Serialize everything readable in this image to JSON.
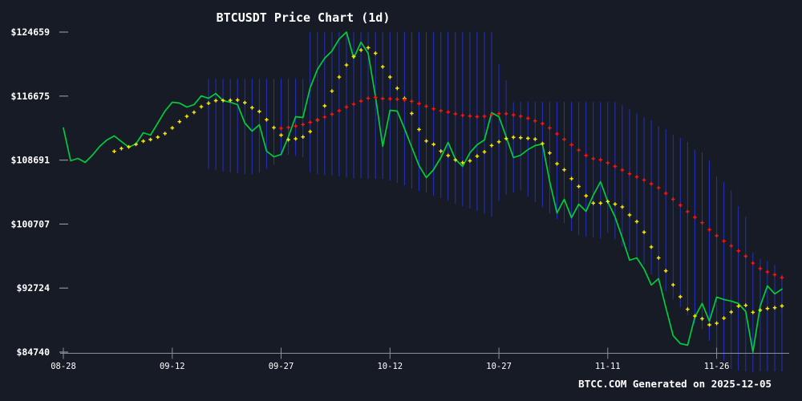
{
  "title": "BTCUSDT Price Chart (1d)",
  "watermark": "BTCC.COM Generated on 2025-12-05",
  "colors": {
    "background": "#171b26",
    "price_line": "#00cd3c",
    "ma_short": "#ffec00",
    "ma_long": "#ff1414",
    "range_lines": "#2430bd",
    "axis": "#8a9099",
    "text": "#ffffff"
  },
  "chart_data": {
    "type": "line",
    "title": "BTCUSDT Price Chart (1d)",
    "symbol": "BTCUSDT",
    "interval": "1d",
    "grid": false,
    "legend": "none",
    "x_start_date": "08-28",
    "x_end_date": "12-05",
    "x_tick_labels": [
      "08-28",
      "09-12",
      "09-27",
      "10-12",
      "10-27",
      "11-11",
      "11-26"
    ],
    "x_tick_days": [
      0,
      15,
      30,
      45,
      60,
      75,
      90
    ],
    "y_tick_labels": [
      "$124659",
      "$116675",
      "$108691",
      "$100707",
      "$92724",
      "$84740"
    ],
    "y_tick_values": [
      124659,
      116675,
      108691,
      100707,
      92724,
      84740
    ],
    "ylim": [
      84740,
      124659
    ],
    "series": [
      {
        "name": "close",
        "style": "solid-line",
        "color": "#00cd3c",
        "values": [
          112700,
          108600,
          108900,
          108400,
          109300,
          110400,
          111200,
          111700,
          111000,
          110300,
          110700,
          112100,
          111800,
          113300,
          114800,
          115900,
          115800,
          115300,
          115600,
          116700,
          116400,
          117000,
          116100,
          115900,
          115600,
          113300,
          112300,
          113100,
          109800,
          109100,
          109400,
          111600,
          114100,
          114000,
          117700,
          120000,
          121400,
          122300,
          123800,
          124659,
          121400,
          123400,
          122000,
          116600,
          110400,
          114900,
          114800,
          112600,
          110300,
          108000,
          106500,
          107500,
          109000,
          110900,
          108800,
          107900,
          109600,
          110600,
          111200,
          114600,
          114100,
          111600,
          109000,
          109300,
          110000,
          110500,
          110700,
          106000,
          102100,
          103800,
          101500,
          103200,
          102300,
          104300,
          106000,
          103500,
          101600,
          99000,
          96200,
          96500,
          95100,
          93100,
          93900,
          90300,
          86800,
          85800,
          85600,
          89100,
          90800,
          88600,
          91600,
          91300,
          91100,
          90800,
          89800,
          84740,
          90500,
          93000,
          92000,
          92600
        ]
      },
      {
        "name": "ma7",
        "style": "plus-dots",
        "derived_from": "close",
        "window": 7,
        "color": "#ffec00"
      },
      {
        "name": "ma30",
        "style": "plus-dots",
        "derived_from": "close",
        "window": 30,
        "color": "#ff1414"
      }
    ],
    "range_lines": {
      "comment": "vertical blue background lines, one per day",
      "start_day": 20,
      "color": "#2430bd",
      "top": [
        118840,
        118840,
        118840,
        118840,
        118840,
        118840,
        118840,
        118840,
        118840,
        118840,
        118840,
        118840,
        118840,
        118840,
        124659,
        124659,
        124659,
        124659,
        124659,
        124659,
        124659,
        124659,
        124659,
        124659,
        124659,
        124659,
        124659,
        124659,
        124659,
        124659,
        124659,
        124659,
        124659,
        124659,
        124659,
        124659,
        124659,
        124659,
        124659,
        124659,
        120640,
        118640,
        115940,
        115940,
        115940,
        115940,
        115940,
        115940,
        115940,
        115940,
        115940,
        115940,
        115940,
        115940,
        115940,
        115940,
        115940,
        115540,
        115040,
        114540,
        114040,
        113640,
        112940,
        112540,
        111840,
        111440,
        110940,
        109940,
        109640,
        108640,
        106640,
        105940,
        104940,
        102940,
        101640,
        97140,
        96340,
        96140,
        95640,
        94440
      ],
      "bottom": [
        107640,
        107440,
        107240,
        107140,
        107040,
        106940,
        106940,
        107140,
        107640,
        108140,
        109140,
        109340,
        109240,
        109040,
        107140,
        106940,
        106840,
        106740,
        106640,
        106540,
        106440,
        106440,
        106340,
        106340,
        106340,
        106140,
        105840,
        105540,
        105140,
        104840,
        104640,
        104240,
        103940,
        103640,
        103240,
        102940,
        102640,
        102340,
        102040,
        101640,
        103640,
        104340,
        104640,
        104940,
        104140,
        103440,
        102840,
        102040,
        101340,
        100840,
        99840,
        99340,
        99140,
        99040,
        98940,
        99640,
        98840,
        97940,
        97340,
        96640,
        95640,
        94440,
        93440,
        92340,
        91340,
        90340,
        89340,
        88340,
        87640,
        86140,
        84940,
        83640,
        82640,
        82440,
        82340,
        82240,
        82340,
        82340,
        82340,
        82340
      ]
    }
  }
}
